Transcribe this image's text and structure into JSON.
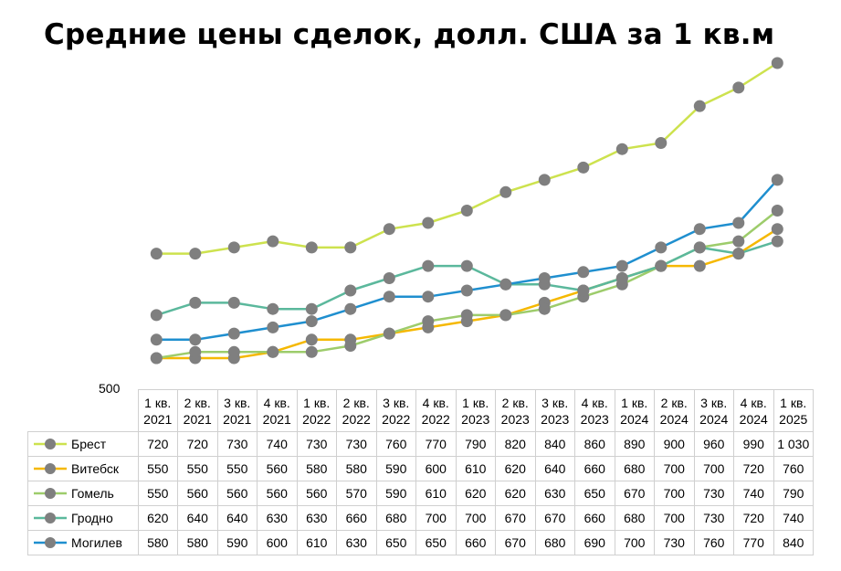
{
  "chart_data": {
    "type": "line",
    "title": "Средние цены сделок, долл. США за 1 кв.м",
    "y_min_label": "500",
    "ylim": [
      500,
      1050
    ],
    "categories": [
      [
        "1 кв.",
        "2021"
      ],
      [
        "2 кв.",
        "2021"
      ],
      [
        "3 кв.",
        "2021"
      ],
      [
        "4 кв.",
        "2021"
      ],
      [
        "1 кв.",
        "2022"
      ],
      [
        "2 кв.",
        "2022"
      ],
      [
        "3 кв.",
        "2022"
      ],
      [
        "4 кв.",
        "2022"
      ],
      [
        "1 кв.",
        "2023"
      ],
      [
        "2 кв.",
        "2023"
      ],
      [
        "3 кв.",
        "2023"
      ],
      [
        "4 кв.",
        "2023"
      ],
      [
        "1 кв.",
        "2024"
      ],
      [
        "2 кв.",
        "2024"
      ],
      [
        "3 кв.",
        "2024"
      ],
      [
        "4 кв.",
        "2024"
      ],
      [
        "1 кв.",
        "2025"
      ]
    ],
    "legend": "data-table",
    "marker_color": "#7f7f7f",
    "series": [
      {
        "name": "Брест",
        "color": "#cde24e",
        "values": [
          720,
          720,
          730,
          740,
          730,
          730,
          760,
          770,
          790,
          820,
          840,
          860,
          890,
          900,
          960,
          990,
          1030
        ],
        "labels": [
          "720",
          "720",
          "730",
          "740",
          "730",
          "730",
          "760",
          "770",
          "790",
          "820",
          "840",
          "860",
          "890",
          "900",
          "960",
          "990",
          "1 030"
        ]
      },
      {
        "name": "Витебск",
        "color": "#f5b800",
        "values": [
          550,
          550,
          550,
          560,
          580,
          580,
          590,
          600,
          610,
          620,
          640,
          660,
          680,
          700,
          700,
          720,
          760
        ],
        "labels": [
          "550",
          "550",
          "550",
          "560",
          "580",
          "580",
          "590",
          "600",
          "610",
          "620",
          "640",
          "660",
          "680",
          "700",
          "700",
          "720",
          "760"
        ]
      },
      {
        "name": "Гомель",
        "color": "#9dcc6b",
        "values": [
          550,
          560,
          560,
          560,
          560,
          570,
          590,
          610,
          620,
          620,
          630,
          650,
          670,
          700,
          730,
          740,
          790
        ],
        "labels": [
          "550",
          "560",
          "560",
          "560",
          "560",
          "570",
          "590",
          "610",
          "620",
          "620",
          "630",
          "650",
          "670",
          "700",
          "730",
          "740",
          "790"
        ]
      },
      {
        "name": "Гродно",
        "color": "#5bb89c",
        "values": [
          620,
          640,
          640,
          630,
          630,
          660,
          680,
          700,
          700,
          670,
          670,
          660,
          680,
          700,
          730,
          720,
          740
        ],
        "labels": [
          "620",
          "640",
          "640",
          "630",
          "630",
          "660",
          "680",
          "700",
          "700",
          "670",
          "670",
          "660",
          "680",
          "700",
          "730",
          "720",
          "740"
        ]
      },
      {
        "name": "Могилев",
        "color": "#1f8fcf",
        "values": [
          580,
          580,
          590,
          600,
          610,
          630,
          650,
          650,
          660,
          670,
          680,
          690,
          700,
          730,
          760,
          770,
          840
        ],
        "labels": [
          "580",
          "580",
          "590",
          "600",
          "610",
          "630",
          "650",
          "650",
          "660",
          "670",
          "680",
          "690",
          "700",
          "730",
          "760",
          "770",
          "840"
        ]
      }
    ]
  }
}
